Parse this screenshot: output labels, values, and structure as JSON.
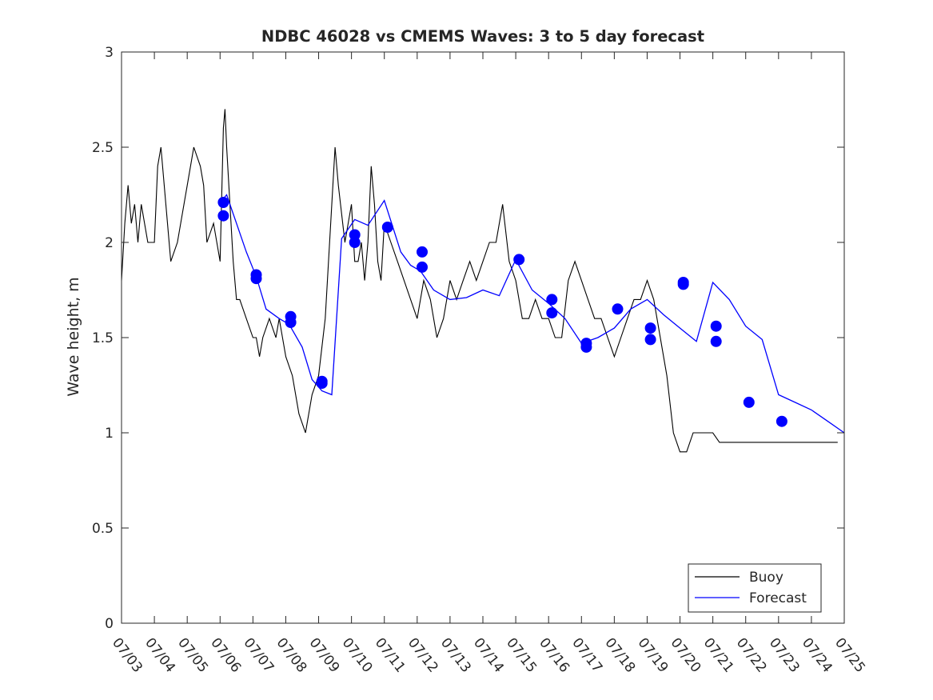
{
  "chart_data": {
    "type": "line",
    "title": "NDBC 46028 vs CMEMS Waves: 3 to 5 day forecast",
    "xlabel": "",
    "ylabel": "Wave height, m",
    "ylim": [
      0,
      3
    ],
    "yticks": [
      0,
      0.5,
      1,
      1.5,
      2,
      2.5,
      3
    ],
    "ytick_labels": [
      "0",
      "0.5",
      "1",
      "1.5",
      "2",
      "2.5",
      "3"
    ],
    "xlim": [
      "2025-07-03",
      "2025-07-25"
    ],
    "xtick_labels": [
      "07/03",
      "07/04",
      "07/05",
      "07/06",
      "07/07",
      "07/08",
      "07/09",
      "07/10",
      "07/11",
      "07/12",
      "07/13",
      "07/14",
      "07/15",
      "07/16",
      "07/17",
      "07/18",
      "07/19",
      "07/20",
      "07/21",
      "07/22",
      "07/23",
      "07/24",
      "07/25"
    ],
    "grid": false,
    "legend": {
      "position": "bottom-right",
      "entries": [
        "Buoy",
        "Forecast"
      ]
    },
    "colors": {
      "buoy": "#000000",
      "forecast": "#0000ff",
      "axis": "#262626"
    },
    "series": [
      {
        "name": "Buoy",
        "x_days_since_0703": [
          0.0,
          0.1,
          0.2,
          0.3,
          0.4,
          0.5,
          0.6,
          0.8,
          1.0,
          1.1,
          1.2,
          1.3,
          1.5,
          1.7,
          1.8,
          1.9,
          2.0,
          2.2,
          2.4,
          2.5,
          2.6,
          2.8,
          3.0,
          3.1,
          3.15,
          3.2,
          3.3,
          3.4,
          3.5,
          3.6,
          3.8,
          4.0,
          4.1,
          4.2,
          4.3,
          4.5,
          4.7,
          4.8,
          5.0,
          5.2,
          5.4,
          5.6,
          5.8,
          6.0,
          6.2,
          6.4,
          6.5,
          6.6,
          6.8,
          6.9,
          7.0,
          7.1,
          7.2,
          7.3,
          7.4,
          7.5,
          7.6,
          7.7,
          7.8,
          7.9,
          8.0,
          8.2,
          8.4,
          8.6,
          8.8,
          9.0,
          9.2,
          9.4,
          9.6,
          9.8,
          10.0,
          10.2,
          10.4,
          10.6,
          10.8,
          11.0,
          11.2,
          11.4,
          11.6,
          11.8,
          12.0,
          12.2,
          12.4,
          12.6,
          12.8,
          13.0,
          13.2,
          13.4,
          13.6,
          13.8,
          14.0,
          14.2,
          14.4,
          14.6,
          14.8,
          15.0,
          15.2,
          15.4,
          15.6,
          15.8,
          16.0,
          16.2,
          16.4,
          16.6,
          16.8,
          17.0,
          17.2,
          17.4,
          17.6,
          17.8,
          18.0,
          18.2,
          18.4,
          18.6,
          18.8,
          19.0,
          19.2,
          19.4,
          19.6,
          19.8,
          20.0,
          20.2,
          20.4,
          20.6,
          20.8,
          21.0,
          21.2,
          21.4,
          21.6,
          21.8,
          22.0
        ],
        "values": [
          1.8,
          2.1,
          2.3,
          2.1,
          2.2,
          2.0,
          2.2,
          2.0,
          2.0,
          2.4,
          2.5,
          2.3,
          1.9,
          2.0,
          2.1,
          2.2,
          2.3,
          2.5,
          2.4,
          2.3,
          2.0,
          2.1,
          1.9,
          2.6,
          2.7,
          2.5,
          2.2,
          1.9,
          1.7,
          1.7,
          1.6,
          1.5,
          1.5,
          1.4,
          1.5,
          1.6,
          1.5,
          1.6,
          1.4,
          1.3,
          1.1,
          1.0,
          1.2,
          1.3,
          1.6,
          2.2,
          2.5,
          2.3,
          2.0,
          2.1,
          2.2,
          1.9,
          1.9,
          2.0,
          1.8,
          2.0,
          2.4,
          2.2,
          1.9,
          1.8,
          2.1,
          2.0,
          1.9,
          1.8,
          1.7,
          1.6,
          1.8,
          1.7,
          1.5,
          1.6,
          1.8,
          1.7,
          1.8,
          1.9,
          1.8,
          1.9,
          2.0,
          2.0,
          2.2,
          1.9,
          1.8,
          1.6,
          1.6,
          1.7,
          1.6,
          1.6,
          1.5,
          1.5,
          1.8,
          1.9,
          1.8,
          1.7,
          1.6,
          1.6,
          1.5,
          1.4,
          1.5,
          1.6,
          1.7,
          1.7,
          1.8,
          1.7,
          1.5,
          1.3,
          1.0,
          0.9,
          0.9,
          1.0,
          1.0,
          1.0,
          1.0,
          0.95,
          0.95,
          0.95,
          0.95,
          0.95,
          0.95,
          0.95,
          0.95,
          0.95,
          0.95,
          0.95,
          0.95,
          0.95,
          0.95,
          0.95,
          0.95,
          0.95,
          0.95,
          0.95
        ]
      },
      {
        "name": "Forecast",
        "x_days_since_0703": [
          3.0,
          3.2,
          3.5,
          3.8,
          4.1,
          4.4,
          4.8,
          5.1,
          5.5,
          5.8,
          6.1,
          6.4,
          6.7,
          7.1,
          7.5,
          8.0,
          8.5,
          8.8,
          9.1,
          9.5,
          10.0,
          10.5,
          11.0,
          11.5,
          12.0,
          12.5,
          13.0,
          13.5,
          14.0,
          14.5,
          15.0,
          15.5,
          16.0,
          16.5,
          17.0,
          17.5,
          18.0,
          18.5,
          19.0,
          19.5,
          20.0,
          20.5,
          21.0,
          21.5,
          22.0
        ],
        "values": [
          2.21,
          2.25,
          2.1,
          1.95,
          1.82,
          1.65,
          1.6,
          1.57,
          1.45,
          1.28,
          1.22,
          1.2,
          2.02,
          2.12,
          2.09,
          2.22,
          1.95,
          1.88,
          1.85,
          1.75,
          1.7,
          1.71,
          1.75,
          1.72,
          1.91,
          1.75,
          1.68,
          1.6,
          1.47,
          1.5,
          1.55,
          1.65,
          1.7,
          1.62,
          1.55,
          1.48,
          1.79,
          1.7,
          1.56,
          1.49,
          1.2,
          1.16,
          1.12,
          1.06,
          1.0
        ]
      }
    ],
    "forecast_markers": [
      {
        "day": 3.1,
        "values": [
          2.21,
          2.14
        ]
      },
      {
        "day": 4.1,
        "values": [
          1.83,
          1.81
        ]
      },
      {
        "day": 5.15,
        "values": [
          1.61,
          1.58
        ]
      },
      {
        "day": 6.1,
        "values": [
          1.27,
          1.26
        ]
      },
      {
        "day": 7.1,
        "values": [
          2.04,
          2.0
        ]
      },
      {
        "day": 8.1,
        "values": [
          2.08
        ]
      },
      {
        "day": 9.15,
        "values": [
          1.95,
          1.87
        ]
      },
      {
        "day": 12.1,
        "values": [
          1.91
        ]
      },
      {
        "day": 13.1,
        "values": [
          1.7,
          1.63
        ]
      },
      {
        "day": 14.15,
        "values": [
          1.47,
          1.45
        ]
      },
      {
        "day": 15.1,
        "values": [
          1.65
        ]
      },
      {
        "day": 16.1,
        "values": [
          1.55,
          1.49
        ]
      },
      {
        "day": 17.1,
        "values": [
          1.79,
          1.78
        ]
      },
      {
        "day": 18.1,
        "values": [
          1.56,
          1.48
        ]
      },
      {
        "day": 19.1,
        "values": [
          1.16
        ]
      },
      {
        "day": 20.1,
        "values": [
          1.06
        ]
      }
    ]
  }
}
